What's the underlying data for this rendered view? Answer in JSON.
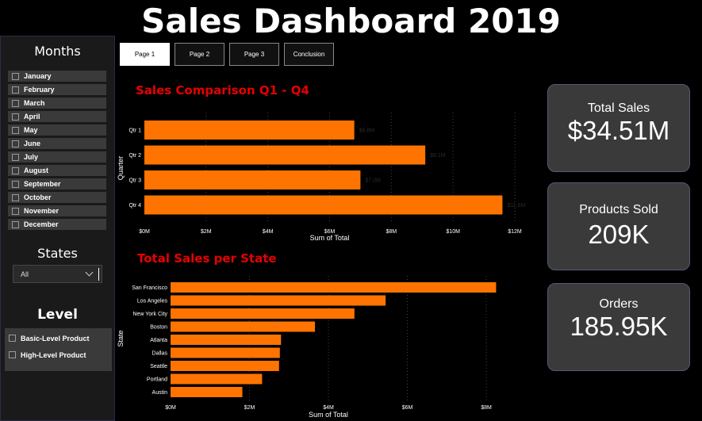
{
  "title": "Sales Dashboard 2019",
  "tabs": [
    {
      "label": "Page 1",
      "active": true
    },
    {
      "label": "Page 2",
      "active": false
    },
    {
      "label": "Page 3",
      "active": false
    },
    {
      "label": "Conclusion",
      "active": false
    }
  ],
  "sidebar": {
    "months_title": "Months",
    "months": [
      "January",
      "February",
      "March",
      "April",
      "May",
      "June",
      "July",
      "August",
      "September",
      "October",
      "November",
      "December"
    ],
    "states_title": "States",
    "states_value": "All",
    "level_title": "Level",
    "levels": [
      "Basic-Level Product",
      "High-Level Product"
    ]
  },
  "kpis": [
    {
      "label": "Total Sales",
      "value": "$34.51M"
    },
    {
      "label": "Products Sold",
      "value": "209K"
    },
    {
      "label": "Orders",
      "value": "185.95K"
    }
  ],
  "colors": {
    "bar": "#ff7400",
    "heading": "#e60000",
    "background": "#000000"
  },
  "chart_data": [
    {
      "type": "bar",
      "orientation": "horizontal",
      "title": "Sales Comparison Q1 - Q4",
      "categories": [
        "Qtr 1",
        "Qtr 2",
        "Qtr 3",
        "Qtr 4"
      ],
      "values": [
        6.8,
        9.1,
        7.0,
        11.6
      ],
      "data_labels": [
        "$6.8M",
        "$9.1M",
        "$7.0M",
        "$11.6M"
      ],
      "xlabel": "Sum of Total",
      "ylabel": "Quarter",
      "xticks": [
        "$0M",
        "$2M",
        "$4M",
        "$6M",
        "$8M",
        "$10M",
        "$12M"
      ],
      "xlim": [
        0,
        12
      ]
    },
    {
      "type": "bar",
      "orientation": "horizontal",
      "title": "Total Sales per State",
      "categories": [
        "San Francisco",
        "Los Angeles",
        "New York City",
        "Boston",
        "Atlanta",
        "Dallas",
        "Seattle",
        "Portland",
        "Austin"
      ],
      "values": [
        8.25,
        5.45,
        4.66,
        3.66,
        2.8,
        2.77,
        2.75,
        2.32,
        1.82
      ],
      "xlabel": "Sum of Total",
      "ylabel": "State",
      "xticks": [
        "$0M",
        "$2M",
        "$4M",
        "$6M",
        "$8M"
      ],
      "xlim": [
        0,
        8
      ]
    }
  ]
}
